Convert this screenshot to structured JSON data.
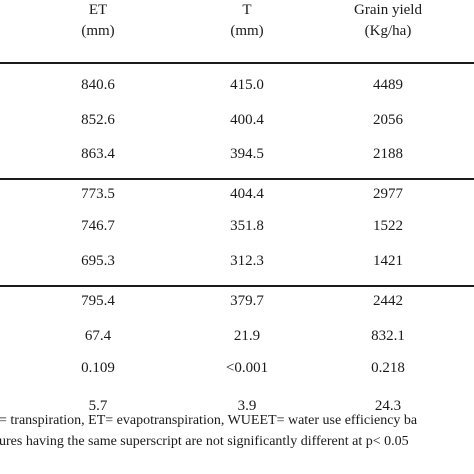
{
  "table": {
    "headers": [
      {
        "label": "ET",
        "unit": "(mm)"
      },
      {
        "label": "T",
        "unit": "(mm)"
      },
      {
        "label": "Grain yield",
        "unit": "(Kg/ha)"
      }
    ],
    "rows": [
      [
        "840.6",
        "415.0",
        "4489"
      ],
      [
        "852.6",
        "400.4",
        "2056"
      ],
      [
        "863.4",
        "394.5",
        "2188"
      ],
      [
        "773.5",
        "404.4",
        "2977"
      ],
      [
        "746.7",
        "351.8",
        "1522"
      ],
      [
        "695.3",
        "312.3",
        "1421"
      ],
      [
        "795.4",
        "379.7",
        "2442"
      ],
      [
        "67.4",
        "21.9",
        "832.1"
      ],
      [
        "0.109",
        "<0.001",
        "0.218"
      ],
      [
        "5.7",
        "3.9",
        "24.3"
      ]
    ]
  },
  "footnotes": [
    "= transpiration, ET= evapotranspiration, WUEET= water use efficiency ba",
    "ures having the same superscript are not significantly different at p< 0.05"
  ]
}
